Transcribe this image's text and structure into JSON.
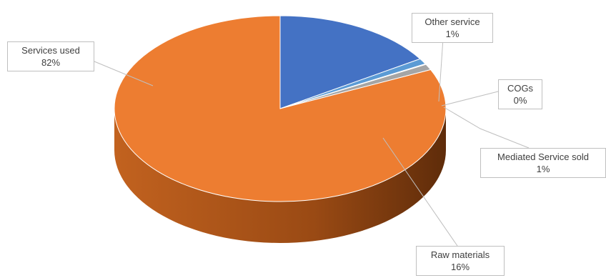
{
  "chart_data": {
    "type": "pie",
    "title": "",
    "style": "3d-pie",
    "legend": "none",
    "categories": [
      "Services used",
      "Other service",
      "COGs",
      "Mediated Service sold",
      "Raw materials"
    ],
    "values": [
      82,
      1,
      0,
      1,
      16
    ],
    "value_labels": [
      "82%",
      "1%",
      "0%",
      "1%",
      "16%"
    ],
    "colors": [
      "#ED7D31",
      "#A5A5A5",
      "#FFC000",
      "#5B9BD5",
      "#4472C4"
    ]
  }
}
